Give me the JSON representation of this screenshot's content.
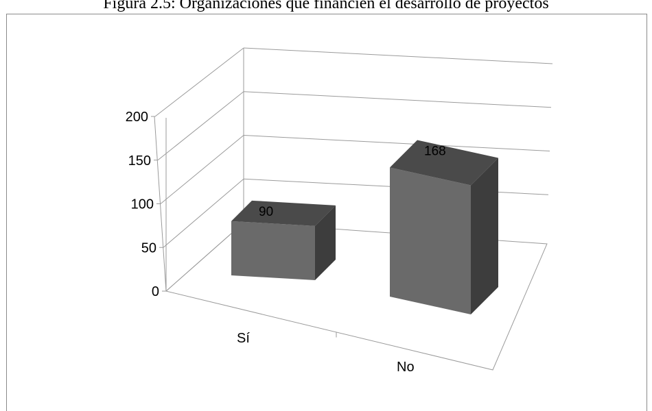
{
  "caption": "Figura 2.5: Organizaciones que financien el desarrollo de proyectos",
  "chart_data": {
    "type": "bar",
    "style": "3d-column",
    "title": "",
    "xlabel": "",
    "ylabel": "",
    "categories": [
      "Sí",
      "No"
    ],
    "values": [
      90,
      168
    ],
    "data_labels": [
      "90",
      "168"
    ],
    "ylim": [
      0,
      200
    ],
    "yticks": [
      0,
      50,
      100,
      150,
      200
    ],
    "ytick_labels": [
      "0",
      "50",
      "100",
      "150",
      "200"
    ],
    "grid": true,
    "legend": "none",
    "colors": {
      "bar_front": "#6a6a6a",
      "bar_top": "#4a4a4a",
      "bar_side": "#3d3d3d",
      "grid": "#9a9a9a"
    }
  }
}
